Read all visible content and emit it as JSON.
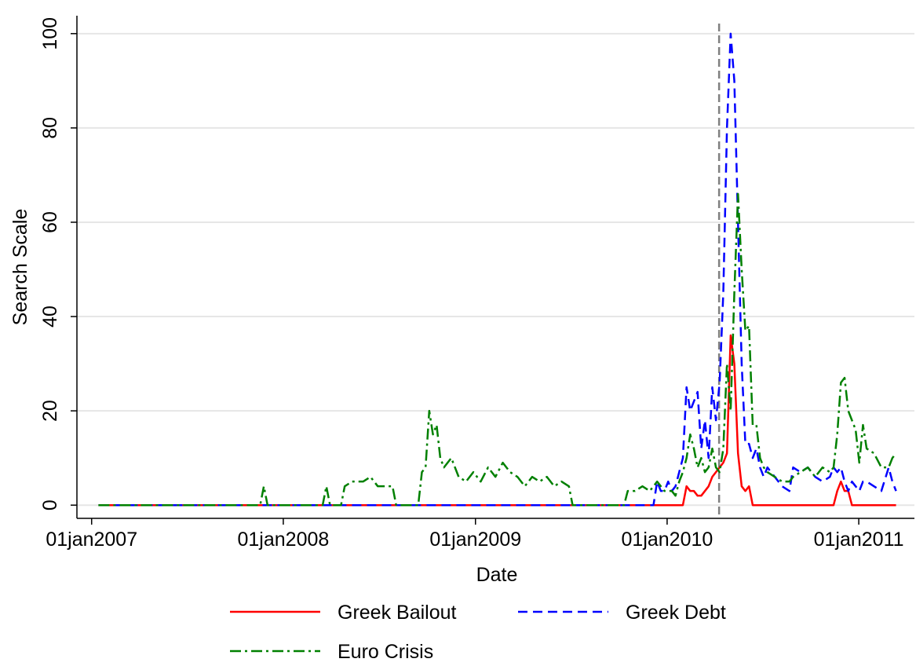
{
  "chart_data": {
    "type": "line",
    "y_label": "Search Scale",
    "x_label": "Date",
    "x": [
      "2007-01-14",
      "2007-11-18",
      "2007-11-25",
      "2007-12-02",
      "2008-03-16",
      "2008-03-23",
      "2008-03-30",
      "2008-04-20",
      "2008-04-27",
      "2008-05-11",
      "2008-06-01",
      "2008-06-15",
      "2008-06-29",
      "2008-07-27",
      "2008-08-03",
      "2008-09-14",
      "2008-09-21",
      "2008-09-28",
      "2008-10-05",
      "2008-10-12",
      "2008-10-19",
      "2008-10-26",
      "2008-11-02",
      "2008-11-16",
      "2008-11-30",
      "2008-12-14",
      "2008-12-28",
      "2009-01-11",
      "2009-01-25",
      "2009-02-08",
      "2009-02-22",
      "2009-03-08",
      "2009-03-22",
      "2009-04-05",
      "2009-04-19",
      "2009-05-03",
      "2009-05-17",
      "2009-05-31",
      "2009-06-14",
      "2009-06-28",
      "2009-07-05",
      "2009-10-11",
      "2009-10-18",
      "2009-11-01",
      "2009-11-15",
      "2009-11-29",
      "2009-12-06",
      "2009-12-13",
      "2009-12-20",
      "2009-12-27",
      "2010-01-03",
      "2010-01-10",
      "2010-01-17",
      "2010-01-24",
      "2010-01-31",
      "2010-02-07",
      "2010-02-14",
      "2010-02-21",
      "2010-02-28",
      "2010-03-07",
      "2010-03-14",
      "2010-03-21",
      "2010-03-28",
      "2010-04-04",
      "2010-04-11",
      "2010-04-18",
      "2010-04-25",
      "2010-05-02",
      "2010-05-09",
      "2010-05-16",
      "2010-05-23",
      "2010-05-30",
      "2010-06-06",
      "2010-06-13",
      "2010-06-20",
      "2010-06-27",
      "2010-07-04",
      "2010-07-11",
      "2010-07-25",
      "2010-08-08",
      "2010-08-22",
      "2010-08-29",
      "2010-09-12",
      "2010-09-26",
      "2010-10-10",
      "2010-10-24",
      "2010-11-07",
      "2010-11-14",
      "2010-11-21",
      "2010-11-28",
      "2010-12-05",
      "2010-12-12",
      "2010-12-19",
      "2010-12-26",
      "2011-01-02",
      "2011-01-09",
      "2011-01-16",
      "2011-01-30",
      "2011-02-13",
      "2011-02-27",
      "2011-03-06",
      "2011-03-13"
    ],
    "series": [
      {
        "name": "Greek Bailout",
        "color": "#ff0000",
        "dash": "none",
        "values": [
          0,
          0,
          0,
          0,
          0,
          0,
          0,
          0,
          0,
          0,
          0,
          0,
          0,
          0,
          0,
          0,
          0,
          0,
          0,
          0,
          0,
          0,
          0,
          0,
          0,
          0,
          0,
          0,
          0,
          0,
          0,
          0,
          0,
          0,
          0,
          0,
          0,
          0,
          0,
          0,
          0,
          0,
          0,
          0,
          0,
          0,
          0,
          0,
          0,
          0,
          0,
          0,
          0,
          0,
          0,
          4,
          3,
          3,
          2,
          2,
          3,
          4,
          6,
          7,
          8,
          9,
          11,
          36,
          30,
          11,
          4,
          3,
          4,
          0,
          0,
          0,
          0,
          0,
          0,
          0,
          0,
          0,
          0,
          0,
          0,
          0,
          0,
          0,
          3,
          5,
          3,
          3,
          0,
          0,
          0,
          0,
          0,
          0,
          0,
          0,
          0,
          0
        ]
      },
      {
        "name": "Greek Debt",
        "color": "#0000ff",
        "dash": "12,7",
        "values": [
          0,
          0,
          0,
          0,
          0,
          0,
          0,
          0,
          0,
          0,
          0,
          0,
          0,
          0,
          0,
          0,
          0,
          0,
          0,
          0,
          0,
          0,
          0,
          0,
          0,
          0,
          0,
          0,
          0,
          0,
          0,
          0,
          0,
          0,
          0,
          0,
          0,
          0,
          0,
          0,
          0,
          0,
          0,
          0,
          0,
          0,
          0,
          5,
          3,
          3,
          5,
          3,
          4,
          7,
          10,
          25,
          20,
          22,
          24,
          12,
          18,
          10,
          25,
          18,
          26,
          45,
          80,
          100,
          90,
          60,
          30,
          13,
          13,
          10,
          12,
          8,
          6,
          8,
          6,
          4,
          3,
          8,
          7,
          8,
          6,
          5,
          6,
          8,
          7,
          8,
          5,
          3,
          5,
          4,
          3,
          5,
          5,
          4,
          3,
          8,
          5,
          3
        ]
      },
      {
        "name": "Euro Crisis",
        "color": "#008000",
        "dash": "14,5,3,5",
        "values": [
          0,
          0,
          4,
          0,
          0,
          4,
          0,
          0,
          4,
          5,
          5,
          6,
          4,
          4,
          0,
          0,
          7,
          8,
          20,
          15,
          17,
          10,
          8,
          10,
          6,
          5,
          7,
          5,
          8,
          6,
          9,
          7,
          6,
          4,
          6,
          5,
          6,
          4,
          5,
          4,
          0,
          0,
          3,
          3,
          4,
          3,
          4,
          5,
          4,
          3,
          3,
          3,
          2,
          5,
          7,
          10,
          15,
          12,
          8,
          10,
          7,
          8,
          12,
          8,
          7,
          12,
          30,
          20,
          45,
          66,
          50,
          37,
          38,
          17,
          17,
          10,
          8,
          7,
          6,
          5,
          5,
          6,
          7,
          8,
          6,
          8,
          7,
          8,
          15,
          26,
          27,
          20,
          18,
          16,
          9,
          17,
          12,
          11,
          8,
          8,
          10,
          11
        ]
      }
    ],
    "xlim": [
      "2006-12-04",
      "2011-04-17"
    ],
    "xticks": [
      {
        "value": "2007-01-01",
        "label": "01jan2007"
      },
      {
        "value": "2008-01-01",
        "label": "01jan2008"
      },
      {
        "value": "2009-01-01",
        "label": "01jan2009"
      },
      {
        "value": "2010-01-01",
        "label": "01jan2010"
      },
      {
        "value": "2011-01-01",
        "label": "01jan2011"
      }
    ],
    "ylim": [
      -2.8,
      103.8
    ],
    "yticks": [
      0,
      20,
      40,
      60,
      80,
      100
    ],
    "grid": true,
    "vline": "2010-04-10",
    "vline_color": "#808080"
  }
}
